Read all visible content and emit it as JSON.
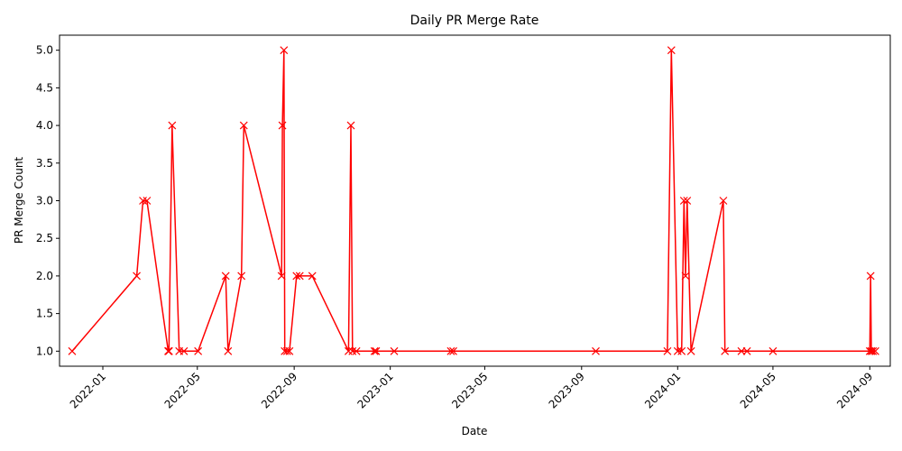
{
  "chart_data": {
    "type": "line",
    "title": "Daily PR Merge Rate",
    "xlabel": "Date",
    "ylabel": "PR Merge Count",
    "ylim": [
      0.8,
      5.2
    ],
    "xlim": [
      "2021-11-07",
      "2024-09-27"
    ],
    "grid": false,
    "legend": "none",
    "line_color": "#ff0000",
    "marker": "x",
    "x_ticks": [
      "2022-01",
      "2022-05",
      "2022-09",
      "2023-01",
      "2023-05",
      "2023-09",
      "2024-01",
      "2024-05",
      "2024-09"
    ],
    "x_tick_dates": [
      "2022-01-01",
      "2022-05-01",
      "2022-09-01",
      "2023-01-01",
      "2023-05-01",
      "2023-09-01",
      "2024-01-01",
      "2024-05-01",
      "2024-09-01"
    ],
    "y_ticks": [
      "1.0",
      "1.5",
      "2.0",
      "2.5",
      "3.0",
      "3.5",
      "4.0",
      "4.5",
      "5.0"
    ],
    "series": [
      {
        "points": [
          [
            "2021-11-23",
            1
          ],
          [
            "2022-02-13",
            2
          ],
          [
            "2022-02-21",
            3
          ],
          [
            "2022-02-26",
            3
          ],
          [
            "2022-03-25",
            1
          ],
          [
            "2022-03-26",
            1
          ],
          [
            "2022-03-30",
            4
          ],
          [
            "2022-04-08",
            1
          ],
          [
            "2022-04-14",
            1
          ],
          [
            "2022-05-02",
            1
          ],
          [
            "2022-06-06",
            2
          ],
          [
            "2022-06-09",
            1
          ],
          [
            "2022-06-26",
            2
          ],
          [
            "2022-06-29",
            4
          ],
          [
            "2022-08-16",
            2
          ],
          [
            "2022-08-17",
            4
          ],
          [
            "2022-08-19",
            5
          ],
          [
            "2022-08-20",
            1
          ],
          [
            "2022-08-23",
            1
          ],
          [
            "2022-08-26",
            1
          ],
          [
            "2022-09-04",
            2
          ],
          [
            "2022-09-08",
            2
          ],
          [
            "2022-09-24",
            2
          ],
          [
            "2022-11-09",
            1
          ],
          [
            "2022-11-12",
            4
          ],
          [
            "2022-11-14",
            1
          ],
          [
            "2022-11-19",
            1
          ],
          [
            "2022-12-12",
            1
          ],
          [
            "2022-12-14",
            1
          ],
          [
            "2023-01-06",
            1
          ],
          [
            "2023-03-19",
            1
          ],
          [
            "2023-03-22",
            1
          ],
          [
            "2023-09-19",
            1
          ],
          [
            "2023-12-19",
            1
          ],
          [
            "2023-12-24",
            5
          ],
          [
            "2024-01-01",
            1
          ],
          [
            "2024-01-06",
            1
          ],
          [
            "2024-01-09",
            3
          ],
          [
            "2024-01-11",
            2
          ],
          [
            "2024-01-13",
            3
          ],
          [
            "2024-01-18",
            1
          ],
          [
            "2024-02-28",
            3
          ],
          [
            "2024-03-01",
            1
          ],
          [
            "2024-03-22",
            1
          ],
          [
            "2024-03-29",
            1
          ],
          [
            "2024-05-01",
            1
          ],
          [
            "2024-09-01",
            1
          ],
          [
            "2024-09-02",
            2
          ],
          [
            "2024-09-03",
            1
          ],
          [
            "2024-09-05",
            1
          ],
          [
            "2024-09-08",
            1
          ]
        ]
      }
    ]
  }
}
